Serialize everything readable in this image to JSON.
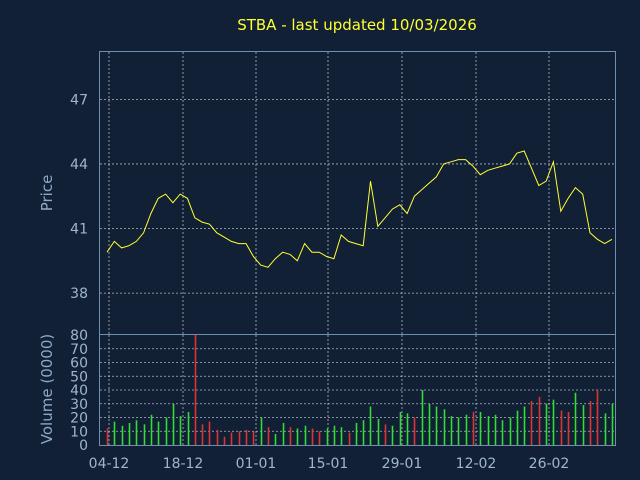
{
  "chart_data": {
    "title": "STBA - last updated 10/03/2026",
    "colors": {
      "background": "#112035",
      "frame": "#6f8fb0",
      "price_line": "#ffff33",
      "volume_up": "#33dd33",
      "volume_down": "#dd3333",
      "grid": "#c8d2dc",
      "tick_text": "#9fb6cf",
      "title_text": "#ffff33"
    },
    "grid": true,
    "x_tick_labels": [
      "04-12",
      "18-12",
      "01-01",
      "15-01",
      "29-01",
      "12-02",
      "26-02"
    ],
    "price_panel": {
      "type": "line",
      "ylabel": "Price",
      "ylim": [
        36.1,
        49.2
      ],
      "yticks": [
        "38",
        "41",
        "44",
        "47"
      ],
      "values": [
        39.9,
        40.4,
        40.1,
        40.2,
        40.4,
        40.8,
        41.7,
        42.4,
        42.6,
        42.2,
        42.6,
        42.4,
        41.5,
        41.3,
        41.2,
        40.8,
        40.6,
        40.4,
        40.3,
        40.3,
        39.7,
        39.3,
        39.2,
        39.6,
        39.9,
        39.8,
        39.5,
        40.3,
        39.9,
        39.9,
        39.7,
        39.6,
        40.7,
        40.4,
        40.3,
        40.2,
        43.2,
        41.1,
        41.5,
        41.9,
        42.1,
        41.7,
        42.5,
        42.8,
        43.1,
        43.4,
        44.0,
        44.1,
        44.2,
        44.2,
        43.9,
        43.5,
        43.7,
        43.8,
        43.9,
        44.0,
        44.5,
        44.6,
        43.8,
        43.0,
        43.2,
        44.1,
        41.8,
        42.4,
        42.9,
        42.6,
        40.8,
        40.5,
        40.3,
        40.5
      ]
    },
    "volume_panel": {
      "type": "bar",
      "ylabel": "Volume (0000)",
      "ylim": [
        0,
        80
      ],
      "yticks": [
        "0",
        "10",
        "20",
        "30",
        "40",
        "50",
        "60",
        "70",
        "80"
      ],
      "values": [
        12,
        17,
        14,
        16,
        18,
        15,
        22,
        17,
        20,
        30,
        21,
        24,
        80,
        15,
        17,
        11,
        6,
        9,
        10,
        11,
        10,
        20,
        13,
        8,
        16,
        13,
        12,
        14,
        12,
        10,
        12,
        14,
        13,
        9,
        16,
        18,
        28,
        19,
        15,
        14,
        24,
        23,
        20,
        40,
        30,
        28,
        26,
        21,
        20,
        22,
        24,
        24,
        21,
        22,
        18,
        20,
        25,
        28,
        32,
        35,
        30,
        33,
        25,
        24,
        38,
        29,
        32,
        40,
        23,
        30
      ],
      "direction": [
        "down",
        "up",
        "up",
        "up",
        "up",
        "up",
        "up",
        "up",
        "up",
        "up",
        "up",
        "up",
        "down",
        "down",
        "down",
        "down",
        "down",
        "down",
        "down",
        "down",
        "down",
        "up",
        "down",
        "up",
        "up",
        "down",
        "up",
        "up",
        "down",
        "down",
        "up",
        "up",
        "up",
        "down",
        "up",
        "up",
        "up",
        "up",
        "down",
        "up",
        "up",
        "up",
        "down",
        "up",
        "up",
        "up",
        "up",
        "up",
        "up",
        "up",
        "down",
        "up",
        "up",
        "up",
        "up",
        "up",
        "up",
        "up",
        "down",
        "down",
        "up",
        "up",
        "down",
        "down",
        "up",
        "up",
        "down",
        "down",
        "up",
        "up"
      ]
    }
  }
}
